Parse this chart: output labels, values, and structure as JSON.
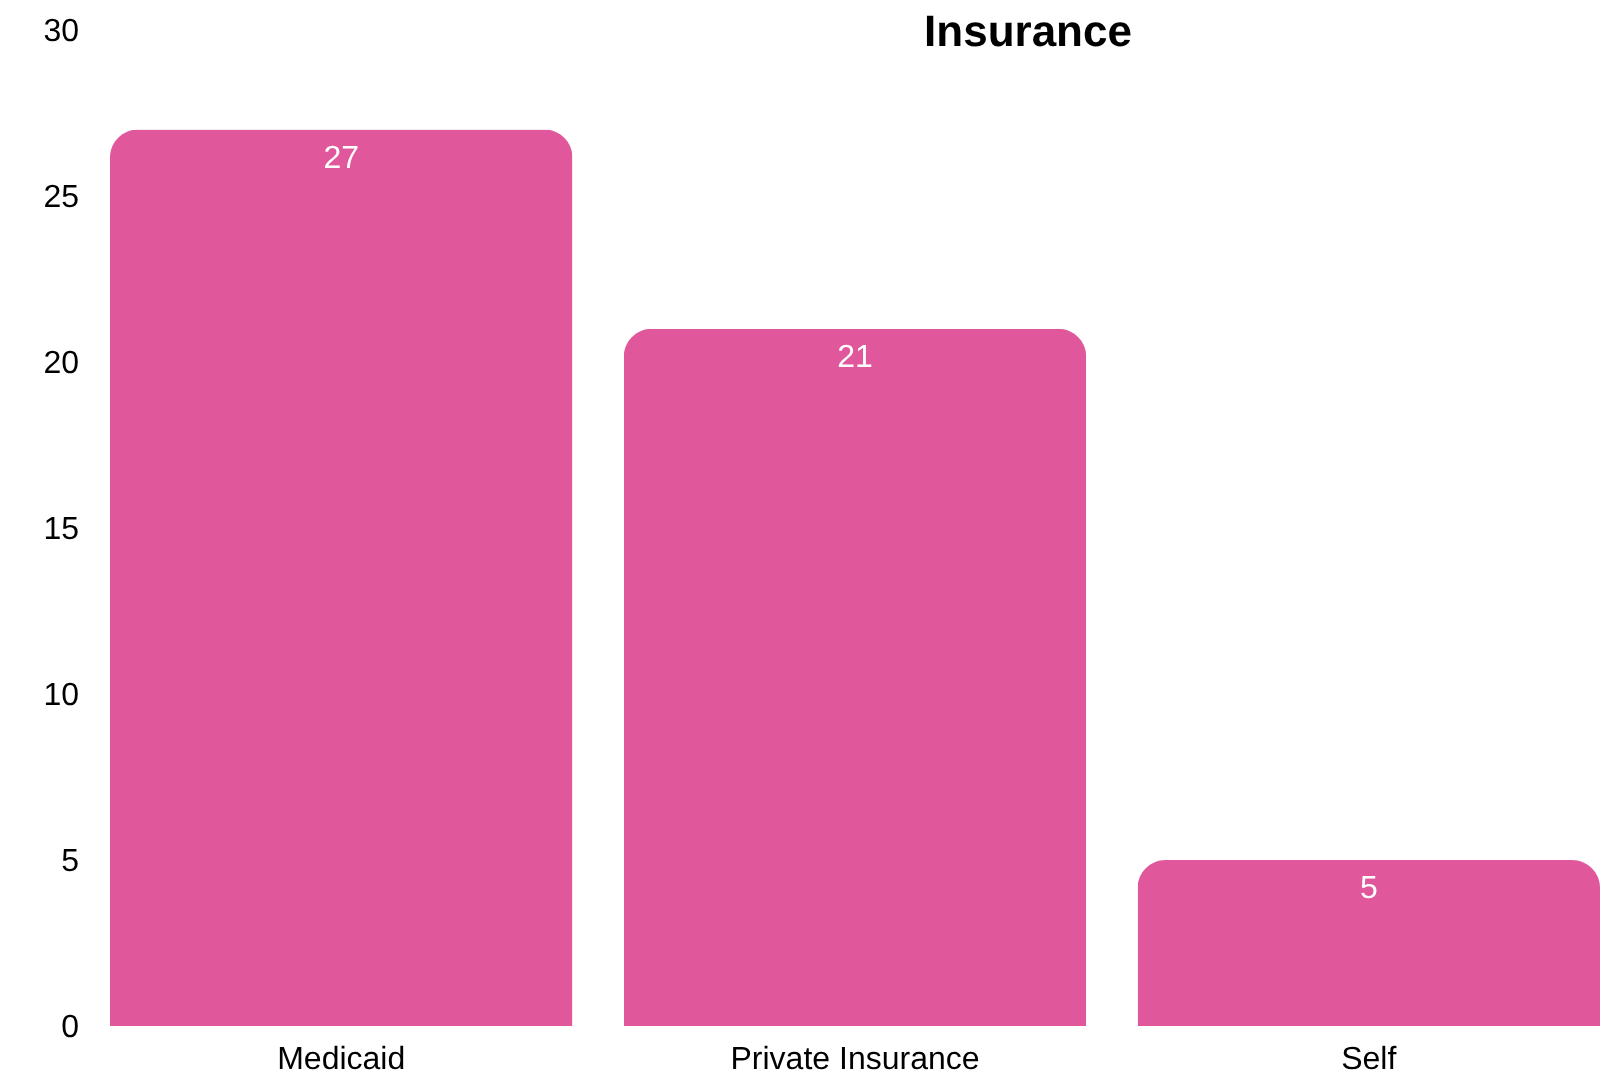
{
  "chart_data": {
    "type": "bar",
    "title": "Insurance",
    "categories": [
      "Medicaid",
      "Private Insurance",
      "Self"
    ],
    "values": [
      27,
      21,
      5
    ],
    "color": "#e0579b",
    "ylim": [
      0,
      30
    ],
    "yticks": [
      0,
      5,
      10,
      15,
      20,
      25,
      30
    ],
    "grid": false,
    "data_labels": true
  }
}
